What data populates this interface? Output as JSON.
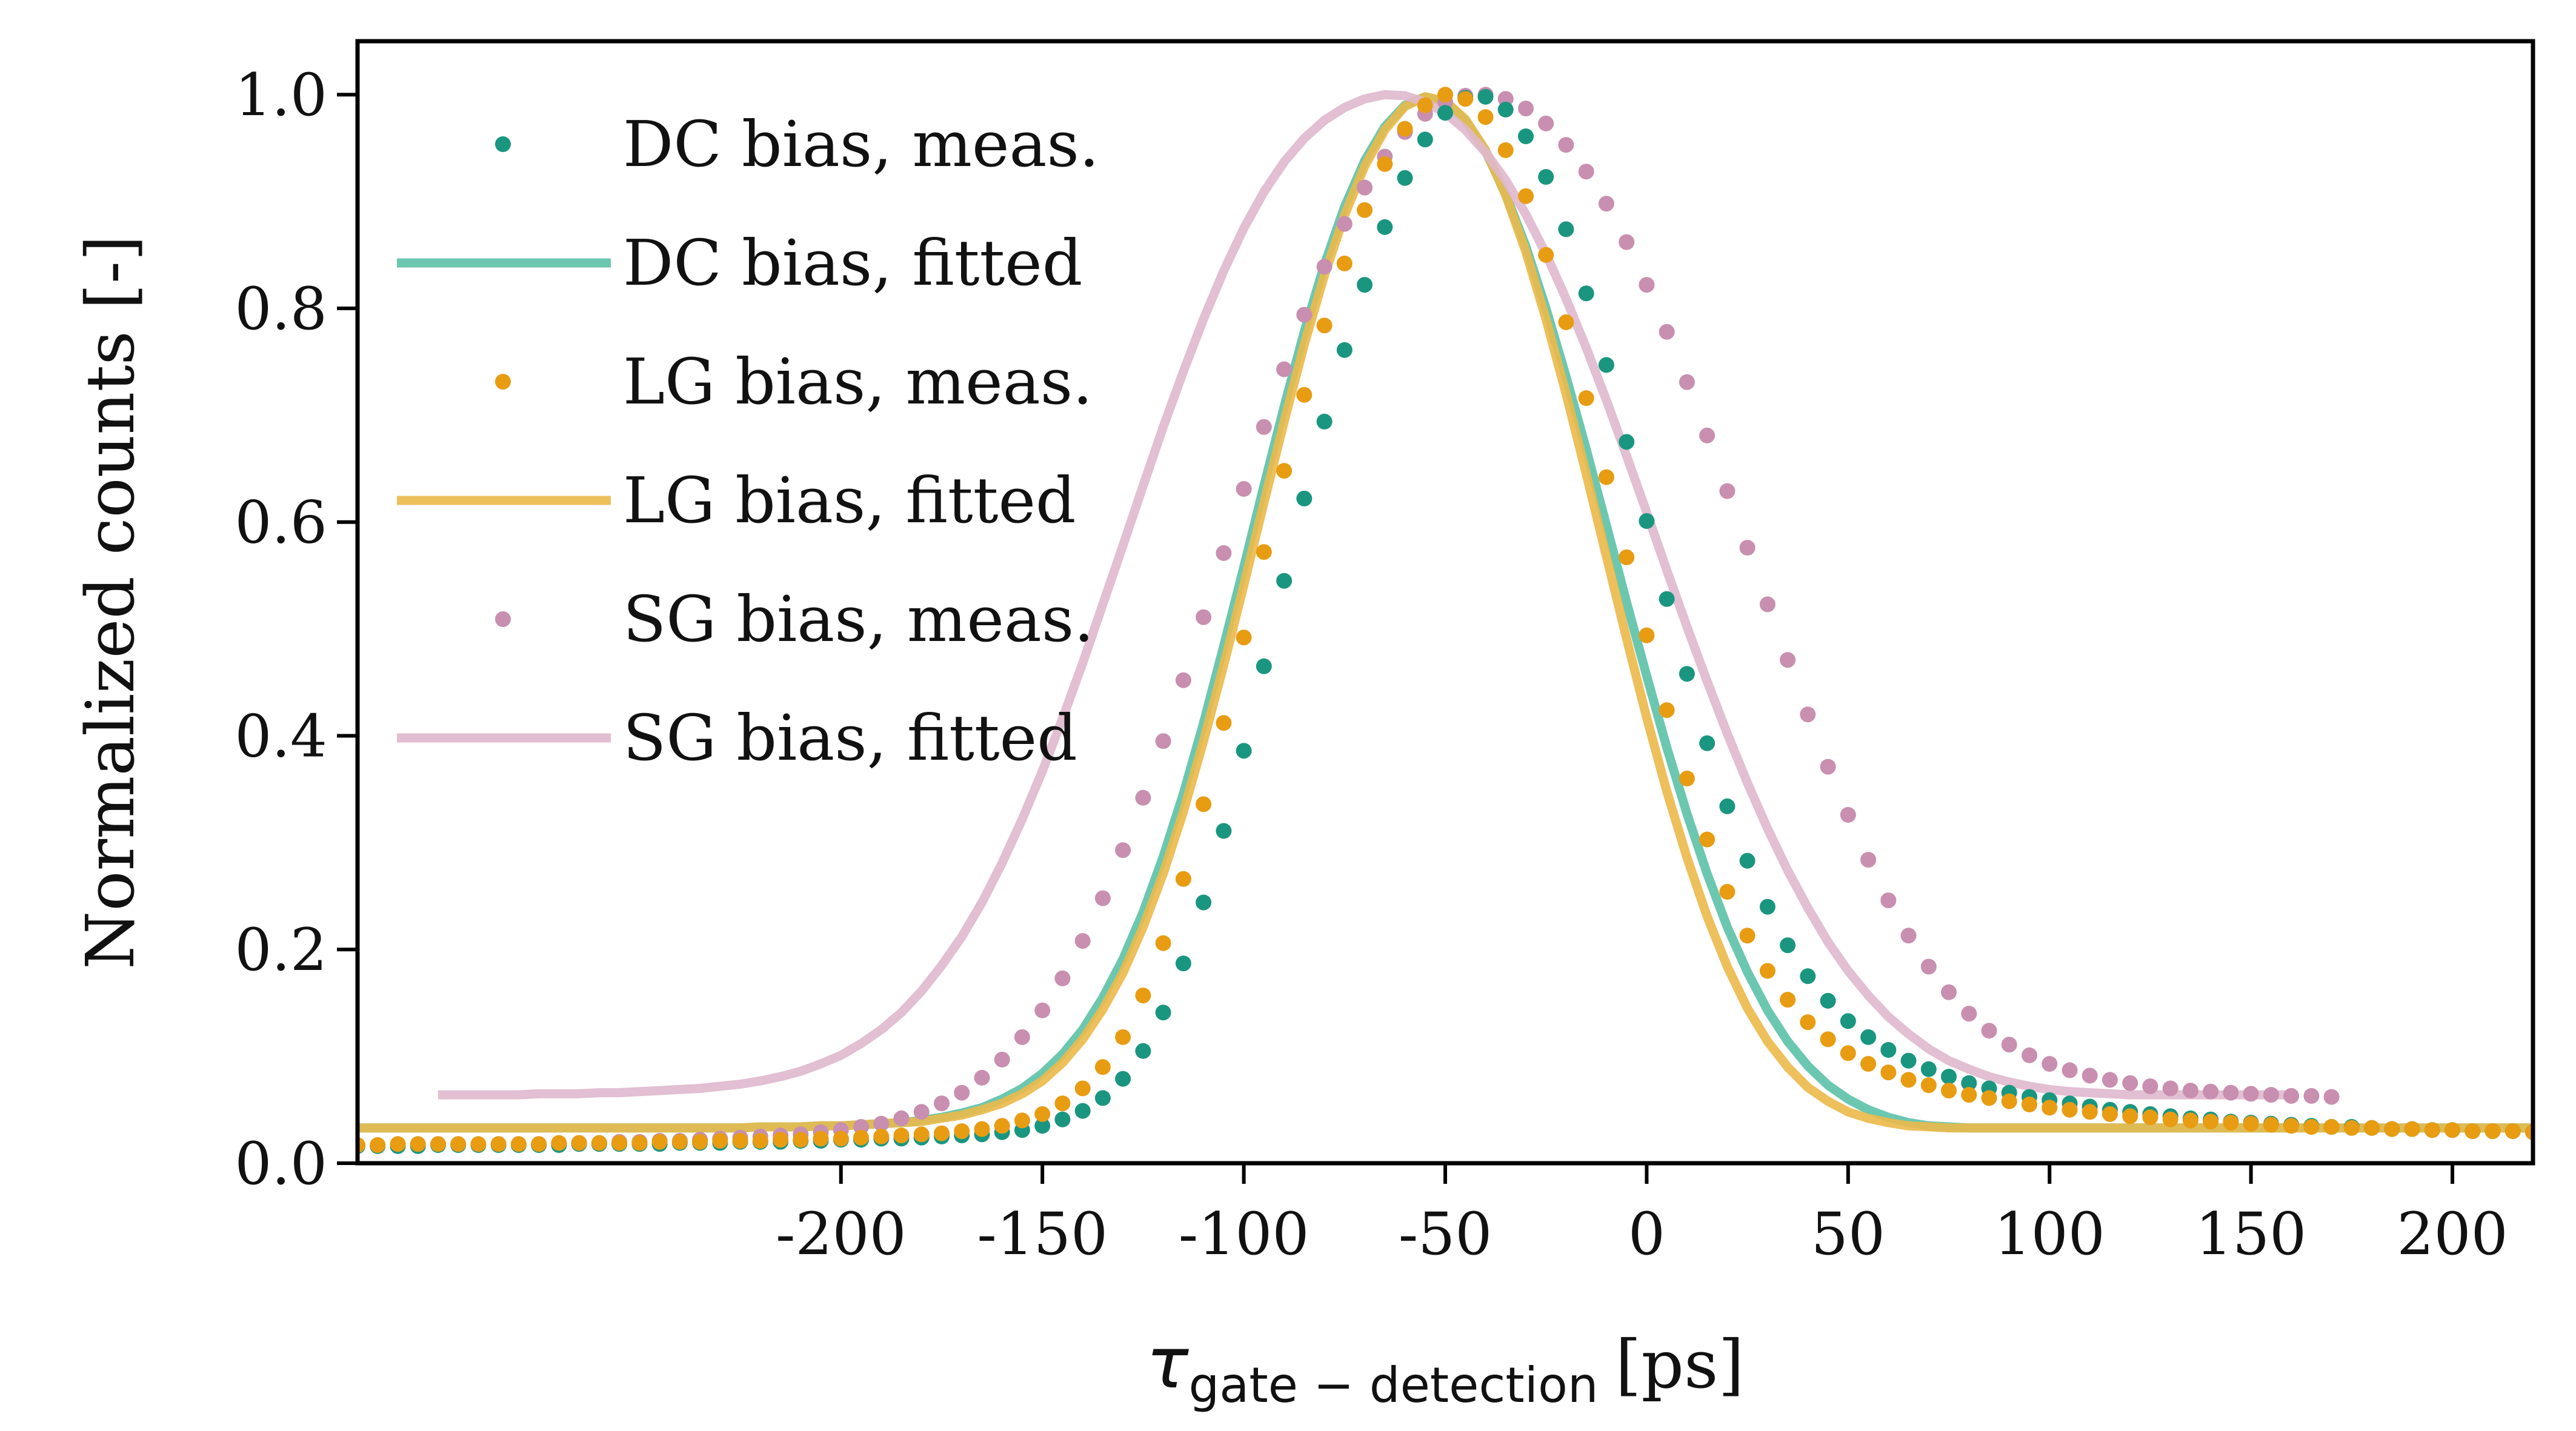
{
  "chart_data": {
    "type": "scatter",
    "title": "",
    "xlabel_symbol": "τ",
    "xlabel_subscript": "gate − detection",
    "xlabel_unit": "[ps]",
    "ylabel": "Normalized counts [-]",
    "xlim": [
      -320,
      220
    ],
    "ylim": [
      0,
      1.05
    ],
    "xticks": [
      -200,
      -150,
      -100,
      -50,
      0,
      50,
      100,
      150,
      200
    ],
    "xtick_labels": [
      "-200",
      "-150",
      "-100",
      "-50",
      "0",
      "50",
      "100",
      "150",
      "200"
    ],
    "yticks": [
      0.0,
      0.2,
      0.4,
      0.6,
      0.8,
      1.0
    ],
    "ytick_labels": [
      "0.0",
      "0.2",
      "0.4",
      "0.6",
      "0.8",
      "1.0"
    ],
    "grid": false,
    "legend_position": "top-left",
    "series": [
      {
        "name": "DC bias, meas.",
        "kind": "points",
        "color": "#1a9680",
        "x_start": -320,
        "x_step": 5,
        "values": [
          0.016,
          0.016,
          0.016,
          0.016,
          0.017,
          0.017,
          0.017,
          0.017,
          0.017,
          0.017,
          0.017,
          0.018,
          0.018,
          0.018,
          0.018,
          0.018,
          0.019,
          0.019,
          0.019,
          0.02,
          0.02,
          0.02,
          0.021,
          0.021,
          0.022,
          0.022,
          0.023,
          0.023,
          0.024,
          0.025,
          0.026,
          0.027,
          0.029,
          0.031,
          0.035,
          0.041,
          0.049,
          0.061,
          0.079,
          0.105,
          0.141,
          0.187,
          0.244,
          0.311,
          0.386,
          0.465,
          0.545,
          0.622,
          0.694,
          0.761,
          0.822,
          0.876,
          0.922,
          0.958,
          0.983,
          0.997,
          0.998,
          0.986,
          0.961,
          0.923,
          0.874,
          0.814,
          0.747,
          0.675,
          0.601,
          0.528,
          0.458,
          0.393,
          0.334,
          0.283,
          0.24,
          0.204,
          0.175,
          0.152,
          0.133,
          0.118,
          0.106,
          0.096,
          0.088,
          0.081,
          0.075,
          0.07,
          0.066,
          0.062,
          0.059,
          0.056,
          0.053,
          0.05,
          0.048,
          0.046,
          0.044,
          0.042,
          0.041,
          0.039,
          0.038,
          0.037,
          0.036,
          0.035,
          0.034,
          0.034,
          0.033,
          0.032,
          0.032,
          0.031,
          0.031,
          0.03,
          0.03,
          0.03,
          0.029
        ]
      },
      {
        "name": "DC bias, fitted",
        "kind": "line",
        "color": "#5cc1a8",
        "x_start": -320,
        "x_step": 5,
        "values": [
          0.033,
          0.033,
          0.033,
          0.033,
          0.033,
          0.033,
          0.033,
          0.033,
          0.033,
          0.033,
          0.033,
          0.033,
          0.033,
          0.033,
          0.033,
          0.033,
          0.033,
          0.033,
          0.033,
          0.033,
          0.034,
          0.034,
          0.034,
          0.035,
          0.035,
          0.036,
          0.037,
          0.038,
          0.04,
          0.043,
          0.047,
          0.052,
          0.06,
          0.07,
          0.084,
          0.102,
          0.125,
          0.155,
          0.191,
          0.235,
          0.287,
          0.346,
          0.412,
          0.484,
          0.558,
          0.634,
          0.708,
          0.778,
          0.841,
          0.895,
          0.938,
          0.97,
          0.99,
          0.998,
          0.993,
          0.976,
          0.947,
          0.907,
          0.858,
          0.8,
          0.736,
          0.668,
          0.597,
          0.525,
          0.456,
          0.389,
          0.327,
          0.271,
          0.221,
          0.179,
          0.143,
          0.114,
          0.091,
          0.073,
          0.06,
          0.05,
          0.043,
          0.038,
          0.035,
          0.034,
          0.033,
          0.033,
          0.033,
          0.033,
          0.033,
          0.033,
          0.033,
          0.033,
          0.033,
          0.033,
          0.033,
          0.033,
          0.033,
          0.033,
          0.033,
          0.033,
          0.033,
          0.033,
          0.033,
          0.033,
          0.033,
          0.033,
          0.033,
          0.033,
          0.033,
          0.033,
          0.033,
          0.033,
          0.033
        ]
      },
      {
        "name": "LG bias, meas.",
        "kind": "points",
        "color": "#e89c12",
        "x_start": -320,
        "x_step": 5,
        "values": [
          0.017,
          0.017,
          0.018,
          0.018,
          0.018,
          0.018,
          0.018,
          0.018,
          0.018,
          0.018,
          0.019,
          0.019,
          0.019,
          0.019,
          0.019,
          0.02,
          0.02,
          0.02,
          0.021,
          0.021,
          0.021,
          0.022,
          0.022,
          0.023,
          0.023,
          0.024,
          0.025,
          0.026,
          0.027,
          0.028,
          0.03,
          0.032,
          0.035,
          0.04,
          0.046,
          0.056,
          0.07,
          0.09,
          0.118,
          0.157,
          0.206,
          0.266,
          0.336,
          0.412,
          0.492,
          0.572,
          0.648,
          0.719,
          0.784,
          0.842,
          0.892,
          0.935,
          0.968,
          0.99,
          1.0,
          0.996,
          0.979,
          0.948,
          0.905,
          0.85,
          0.787,
          0.716,
          0.642,
          0.567,
          0.494,
          0.424,
          0.36,
          0.303,
          0.254,
          0.213,
          0.18,
          0.153,
          0.132,
          0.116,
          0.103,
          0.093,
          0.085,
          0.078,
          0.073,
          0.068,
          0.064,
          0.061,
          0.058,
          0.055,
          0.052,
          0.05,
          0.048,
          0.046,
          0.044,
          0.043,
          0.041,
          0.04,
          0.039,
          0.038,
          0.037,
          0.036,
          0.035,
          0.034,
          0.034,
          0.033,
          0.033,
          0.032,
          0.032,
          0.031,
          0.031,
          0.03,
          0.03,
          0.03,
          0.029
        ]
      },
      {
        "name": "LG bias, fitted",
        "kind": "line",
        "color": "#ebb94a",
        "x_start": -320,
        "x_step": 5,
        "values": [
          0.033,
          0.033,
          0.033,
          0.033,
          0.033,
          0.033,
          0.033,
          0.033,
          0.033,
          0.033,
          0.033,
          0.033,
          0.033,
          0.033,
          0.033,
          0.033,
          0.033,
          0.033,
          0.033,
          0.033,
          0.034,
          0.034,
          0.034,
          0.035,
          0.035,
          0.036,
          0.037,
          0.038,
          0.039,
          0.042,
          0.045,
          0.05,
          0.056,
          0.065,
          0.077,
          0.094,
          0.116,
          0.144,
          0.178,
          0.221,
          0.271,
          0.329,
          0.395,
          0.466,
          0.541,
          0.618,
          0.694,
          0.766,
          0.831,
          0.887,
          0.933,
          0.967,
          0.989,
          0.998,
          0.994,
          0.977,
          0.948,
          0.906,
          0.853,
          0.79,
          0.72,
          0.645,
          0.568,
          0.491,
          0.417,
          0.348,
          0.286,
          0.231,
          0.184,
          0.145,
          0.114,
          0.09,
          0.071,
          0.058,
          0.048,
          0.042,
          0.038,
          0.035,
          0.034,
          0.033,
          0.033,
          0.033,
          0.033,
          0.033,
          0.033,
          0.033,
          0.033,
          0.033,
          0.033,
          0.033,
          0.033,
          0.033,
          0.033,
          0.033,
          0.033,
          0.033,
          0.033,
          0.033,
          0.033,
          0.033,
          0.033,
          0.033,
          0.033,
          0.033,
          0.033,
          0.033,
          0.033,
          0.033,
          0.033
        ]
      },
      {
        "name": "SG bias, meas.",
        "kind": "points",
        "color": "#c88fb0",
        "x_start": -270,
        "x_step": 5,
        "values": [
          0.018,
          0.019,
          0.019,
          0.02,
          0.02,
          0.021,
          0.021,
          0.022,
          0.023,
          0.024,
          0.025,
          0.026,
          0.027,
          0.029,
          0.031,
          0.034,
          0.037,
          0.042,
          0.048,
          0.056,
          0.066,
          0.08,
          0.097,
          0.118,
          0.143,
          0.173,
          0.208,
          0.248,
          0.293,
          0.342,
          0.395,
          0.452,
          0.511,
          0.571,
          0.631,
          0.689,
          0.743,
          0.794,
          0.839,
          0.879,
          0.913,
          0.942,
          0.965,
          0.982,
          0.993,
          0.999,
          1.0,
          0.996,
          0.987,
          0.973,
          0.953,
          0.928,
          0.898,
          0.862,
          0.822,
          0.778,
          0.731,
          0.681,
          0.629,
          0.576,
          0.523,
          0.471,
          0.42,
          0.371,
          0.326,
          0.284,
          0.246,
          0.213,
          0.184,
          0.16,
          0.14,
          0.124,
          0.111,
          0.101,
          0.093,
          0.087,
          0.082,
          0.078,
          0.075,
          0.072,
          0.07,
          0.068,
          0.067,
          0.066,
          0.065,
          0.064,
          0.063,
          0.063,
          0.062
        ]
      },
      {
        "name": "SG bias, fitted",
        "kind": "line",
        "color": "#dfb8cd",
        "x_start": -300,
        "x_step": 5,
        "values": [
          0.064,
          0.064,
          0.064,
          0.064,
          0.064,
          0.065,
          0.065,
          0.065,
          0.066,
          0.066,
          0.067,
          0.068,
          0.069,
          0.07,
          0.072,
          0.074,
          0.077,
          0.081,
          0.086,
          0.093,
          0.101,
          0.112,
          0.125,
          0.141,
          0.161,
          0.185,
          0.212,
          0.244,
          0.281,
          0.322,
          0.367,
          0.416,
          0.468,
          0.523,
          0.578,
          0.634,
          0.689,
          0.741,
          0.79,
          0.835,
          0.875,
          0.909,
          0.937,
          0.959,
          0.976,
          0.988,
          0.996,
          1.0,
          0.999,
          0.993,
          0.983,
          0.967,
          0.946,
          0.92,
          0.888,
          0.851,
          0.809,
          0.763,
          0.714,
          0.662,
          0.609,
          0.555,
          0.502,
          0.451,
          0.402,
          0.356,
          0.313,
          0.274,
          0.239,
          0.207,
          0.18,
          0.157,
          0.137,
          0.121,
          0.107,
          0.096,
          0.088,
          0.081,
          0.076,
          0.072,
          0.069,
          0.067,
          0.066,
          0.065,
          0.064,
          0.064,
          0.064,
          0.064,
          0.064,
          0.064,
          0.064,
          0.064,
          0.064
        ]
      }
    ]
  }
}
